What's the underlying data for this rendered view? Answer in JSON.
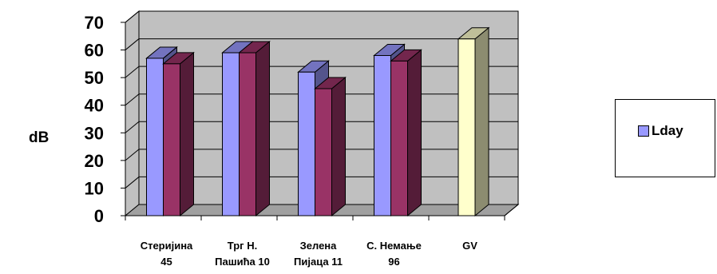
{
  "chart_data": {
    "type": "bar",
    "title": "",
    "xlabel": "",
    "ylabel": "dB",
    "ylim": [
      0,
      70
    ],
    "yticks": [
      0,
      10,
      20,
      30,
      40,
      50,
      60,
      70
    ],
    "categories": [
      [
        "Стеријина",
        "45"
      ],
      [
        "Трг Н.",
        "Пашића 10"
      ],
      [
        "Зелена",
        "Пијаца 11"
      ],
      [
        "С. Немање",
        "96"
      ],
      [
        "GV",
        ""
      ]
    ],
    "series": [
      {
        "name": "Lday",
        "values": [
          57,
          59,
          52,
          58,
          null
        ],
        "color": "#9999ff"
      },
      {
        "name": "",
        "values": [
          55,
          59,
          46,
          56,
          null
        ],
        "color": "#993366"
      },
      {
        "name": "",
        "values": [
          null,
          null,
          null,
          null,
          64
        ],
        "color": "#ffffcc"
      }
    ],
    "legend_position": "right",
    "grid": true,
    "style": "3d-clustered-column"
  }
}
